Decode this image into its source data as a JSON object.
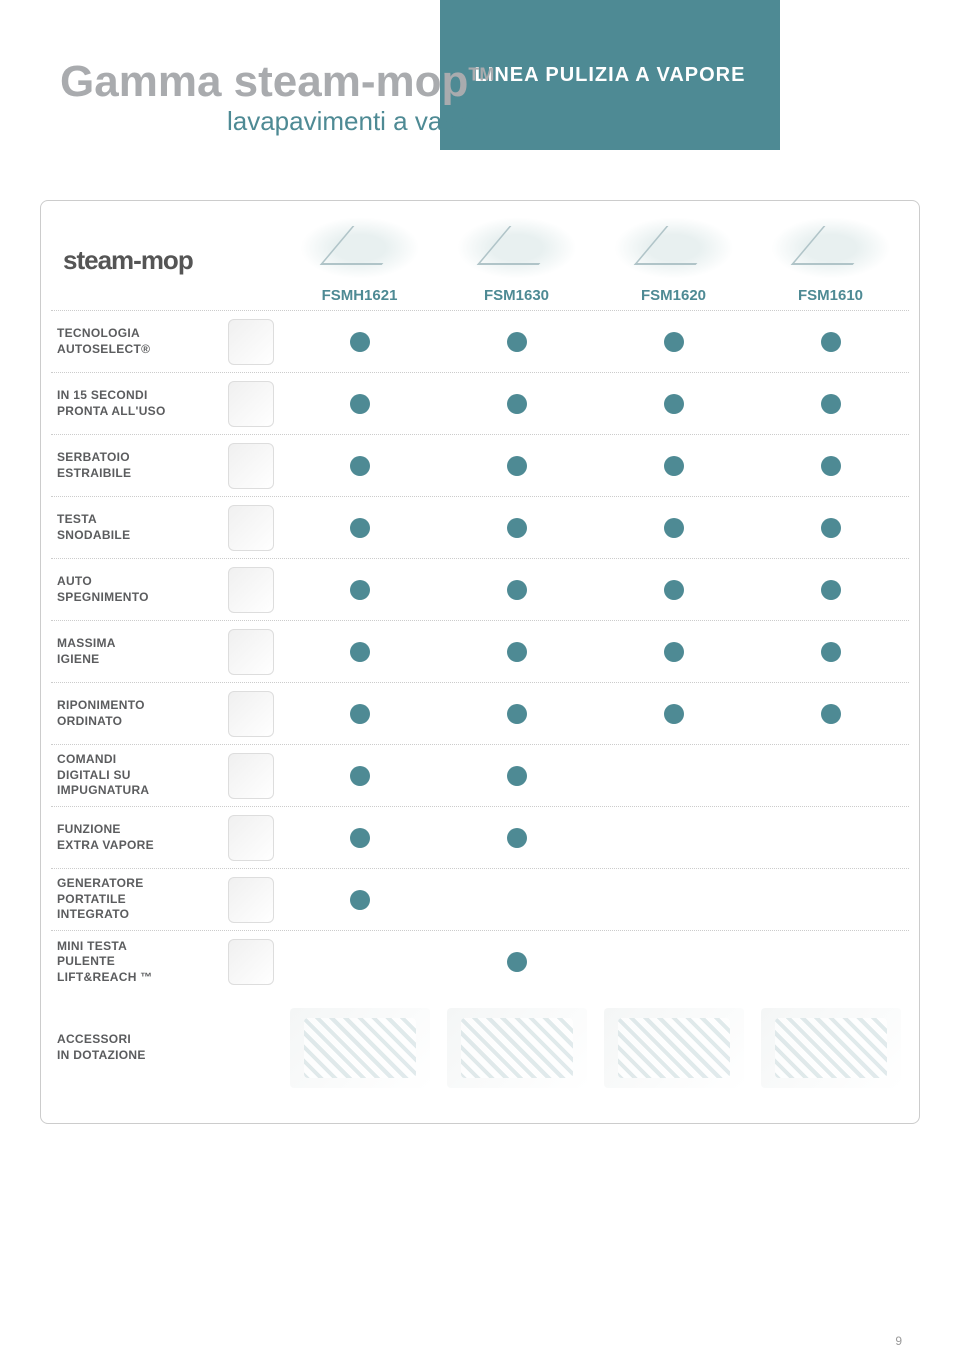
{
  "colors": {
    "teal": "#4e8a94",
    "tab_bg": "#4e8a94",
    "tab_text": "#ffffff",
    "title_gray": "#a9abae",
    "subtitle_teal": "#4e8a94",
    "label_gray": "#5b5c5e",
    "col_header_teal": "#4e8a94",
    "dot_teal": "#4e8a94",
    "pagenum_gray": "#9a9a9a",
    "brand_gray": "#555555"
  },
  "header": {
    "tab": "LINEA PULIZIA A VAPORE",
    "title": "Gamma steam-mop",
    "title_tm": "TM",
    "subtitle": "lavapavimenti a vapore",
    "brand": "steam-mop"
  },
  "columns": [
    {
      "id": "FSMH1621"
    },
    {
      "id": "FSM1630"
    },
    {
      "id": "FSM1620"
    },
    {
      "id": "FSM1610"
    }
  ],
  "features": [
    {
      "label_lines": [
        "TECNOLOGIA",
        "AUTOSELECT®"
      ],
      "dots": [
        true,
        true,
        true,
        true
      ]
    },
    {
      "label_lines": [
        "IN 15 SECONDI",
        "PRONTA ALL'USO"
      ],
      "dots": [
        true,
        true,
        true,
        true
      ]
    },
    {
      "label_lines": [
        "SERBATOIO",
        "ESTRAIBILE"
      ],
      "dots": [
        true,
        true,
        true,
        true
      ]
    },
    {
      "label_lines": [
        "TESTA",
        "SNODABILE"
      ],
      "dots": [
        true,
        true,
        true,
        true
      ]
    },
    {
      "label_lines": [
        "AUTO",
        "SPEGNIMENTO"
      ],
      "dots": [
        true,
        true,
        true,
        true
      ]
    },
    {
      "label_lines": [
        "MASSIMA",
        "IGIENE"
      ],
      "dots": [
        true,
        true,
        true,
        true
      ]
    },
    {
      "label_lines": [
        "RIPONIMENTO",
        "ORDINATO"
      ],
      "dots": [
        true,
        true,
        true,
        true
      ]
    },
    {
      "label_lines": [
        "COMANDI",
        "DIGITALI SU",
        "IMPUGNATURA"
      ],
      "dots": [
        true,
        true,
        false,
        false
      ]
    },
    {
      "label_lines": [
        "FUNZIONE",
        "EXTRA VAPORE"
      ],
      "dots": [
        true,
        true,
        false,
        false
      ]
    },
    {
      "label_lines": [
        "GENERATORE",
        "PORTATILE",
        "INTEGRATO"
      ],
      "dots": [
        true,
        false,
        false,
        false
      ]
    },
    {
      "label_lines": [
        "MINI TESTA",
        "PULENTE",
        "LIFT&REACH ™"
      ],
      "dots": [
        false,
        true,
        false,
        false
      ]
    }
  ],
  "accessories_label_lines": [
    "ACCESSORI",
    "IN DOTAZIONE"
  ],
  "page_number": "9"
}
